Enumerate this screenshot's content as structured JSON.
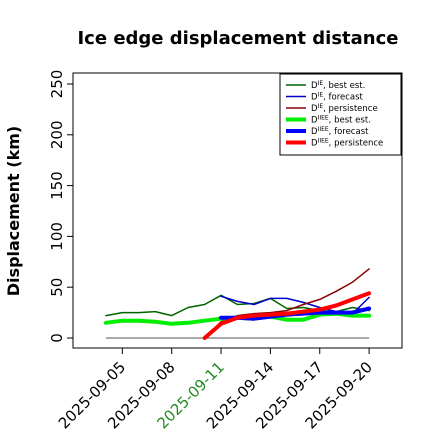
{
  "chart_data": {
    "type": "line",
    "title": "Ice edge displacement distance",
    "xlabel": "",
    "ylabel": "Displacement (km)",
    "ylim": [
      0,
      250
    ],
    "yticks": [
      0,
      50,
      100,
      150,
      200,
      250
    ],
    "xlim": [
      "2025-09-02",
      "2025-09-22"
    ],
    "xticks": [
      "2025-09-05",
      "2025-09-08",
      "2025-09-11",
      "2025-09-14",
      "2025-09-17",
      "2025-09-20"
    ],
    "highlight_tick": "2025-09-11",
    "highlight_color": "#228B22",
    "baseline": 0,
    "grid": false,
    "legend_position": "top-right",
    "series": [
      {
        "name": "D^IE, best est.",
        "base": "D",
        "sup": "IE",
        "suffix": ", best est.",
        "color": "#006400",
        "width": 1.5,
        "x": [
          "2025-09-04",
          "2025-09-05",
          "2025-09-06",
          "2025-09-07",
          "2025-09-08",
          "2025-09-09",
          "2025-09-10",
          "2025-09-11",
          "2025-09-12",
          "2025-09-13",
          "2025-09-14",
          "2025-09-15",
          "2025-09-16",
          "2025-09-17",
          "2025-09-18",
          "2025-09-19",
          "2025-09-20"
        ],
        "y": [
          22,
          25,
          25,
          26,
          22,
          30,
          33,
          42,
          33,
          34,
          39,
          29,
          30,
          27,
          26,
          30,
          27
        ]
      },
      {
        "name": "D^IE, forecast",
        "base": "D",
        "sup": "IE",
        "suffix": ", forecast",
        "color": "#0000cd",
        "width": 1.5,
        "x": [
          "2025-09-11",
          "2025-09-12",
          "2025-09-13",
          "2025-09-14",
          "2025-09-15",
          "2025-09-16",
          "2025-09-17",
          "2025-09-18",
          "2025-09-19",
          "2025-09-20"
        ],
        "y": [
          41,
          36,
          33,
          39,
          39,
          35,
          30,
          26,
          24,
          40
        ]
      },
      {
        "name": "D^IE, persistence",
        "base": "D",
        "sup": "IE",
        "suffix": ", persistence",
        "color": "#8b0000",
        "width": 1.5,
        "x": [
          "2025-09-10",
          "2025-09-11",
          "2025-09-12",
          "2025-09-13",
          "2025-09-14",
          "2025-09-15",
          "2025-09-16",
          "2025-09-17",
          "2025-09-18",
          "2025-09-19",
          "2025-09-20"
        ],
        "y": [
          0,
          16,
          22,
          24,
          25,
          27,
          33,
          38,
          46,
          55,
          68
        ]
      },
      {
        "name": "D^IIEE, best est.",
        "base": "D",
        "sup": "IIEE",
        "suffix": ", best est.",
        "color": "#00ee00",
        "width": 4,
        "x": [
          "2025-09-04",
          "2025-09-05",
          "2025-09-06",
          "2025-09-07",
          "2025-09-08",
          "2025-09-09",
          "2025-09-10",
          "2025-09-11",
          "2025-09-12",
          "2025-09-13",
          "2025-09-14",
          "2025-09-15",
          "2025-09-16",
          "2025-09-17",
          "2025-09-18",
          "2025-09-19",
          "2025-09-20"
        ],
        "y": [
          15,
          17,
          17,
          16,
          14,
          15,
          17,
          19,
          20,
          19,
          21,
          18,
          18,
          23,
          24,
          22,
          22
        ]
      },
      {
        "name": "D^IIEE, forecast",
        "base": "D",
        "sup": "IIEE",
        "suffix": ", forecast",
        "color": "#0000ff",
        "width": 4,
        "x": [
          "2025-09-11",
          "2025-09-12",
          "2025-09-13",
          "2025-09-14",
          "2025-09-15",
          "2025-09-16",
          "2025-09-17",
          "2025-09-18",
          "2025-09-19",
          "2025-09-20"
        ],
        "y": [
          20,
          20,
          19,
          21,
          23,
          24,
          25,
          25,
          25,
          29
        ]
      },
      {
        "name": "D^IIEE, persistence",
        "base": "D",
        "sup": "IIEE",
        "suffix": ", persistence",
        "color": "#ff0000",
        "width": 4,
        "x": [
          "2025-09-10",
          "2025-09-11",
          "2025-09-12",
          "2025-09-13",
          "2025-09-14",
          "2025-09-15",
          "2025-09-16",
          "2025-09-17",
          "2025-09-18",
          "2025-09-19",
          "2025-09-20"
        ],
        "y": [
          0,
          14,
          20,
          22,
          23,
          24,
          26,
          28,
          32,
          38,
          44
        ]
      }
    ]
  }
}
